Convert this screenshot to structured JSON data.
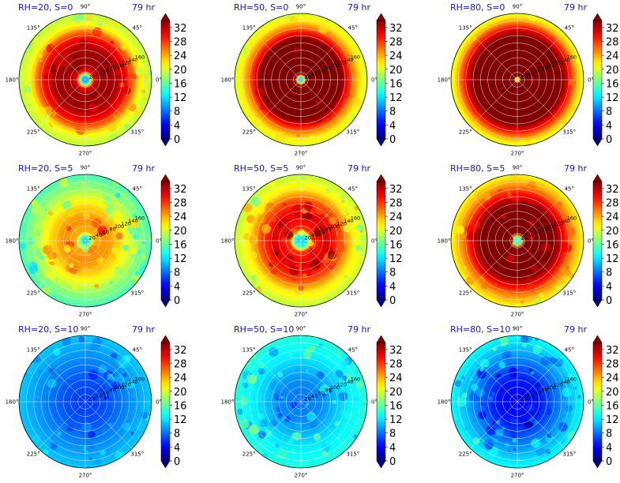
{
  "chart_data": {
    "type": "heatmap",
    "projection": "polar",
    "layout": "3x3 grid of polar panels, each with its own vertical colorbar on the right",
    "angle_ticks": [
      "0°",
      "45°",
      "90°",
      "135°",
      "180°",
      "225°",
      "270°",
      "315°"
    ],
    "radial_ticks": [
      "20",
      "40",
      "60",
      "80",
      "100",
      "120",
      "140",
      "160"
    ],
    "radial_range": [
      0,
      180
    ],
    "grid": true,
    "colormap": "jet",
    "colorbar": {
      "ticks": [
        "0",
        "4",
        "8",
        "12",
        "16",
        "20",
        "24",
        "28",
        "32"
      ],
      "range": [
        0,
        34
      ],
      "extend": "both"
    },
    "label_color": "#1515c0",
    "panels": [
      {
        "label": "RH=20, S=0",
        "time": "79 hr",
        "rings": [
          {
            "r": 0,
            "value": 6
          },
          {
            "r": 10,
            "value": 12
          },
          {
            "r": 22,
            "value": 30
          },
          {
            "r": 40,
            "value": 33
          },
          {
            "r": 80,
            "value": 33
          },
          {
            "r": 110,
            "value": 30
          },
          {
            "r": 130,
            "value": 26
          },
          {
            "r": 150,
            "value": 21
          },
          {
            "r": 180,
            "value": 19
          }
        ],
        "texture": 0.35
      },
      {
        "label": "RH=50, S=0",
        "time": "79 hr",
        "rings": [
          {
            "r": 0,
            "value": 8
          },
          {
            "r": 8,
            "value": 14
          },
          {
            "r": 16,
            "value": 34
          },
          {
            "r": 110,
            "value": 34
          },
          {
            "r": 125,
            "value": 30
          },
          {
            "r": 145,
            "value": 25
          },
          {
            "r": 160,
            "value": 22
          },
          {
            "r": 180,
            "value": 20
          }
        ],
        "texture": 0.15
      },
      {
        "label": "RH=80, S=0",
        "time": "79 hr",
        "rings": [
          {
            "r": 0,
            "value": 16
          },
          {
            "r": 5,
            "value": 22
          },
          {
            "r": 10,
            "value": 34
          },
          {
            "r": 120,
            "value": 34
          },
          {
            "r": 135,
            "value": 31
          },
          {
            "r": 150,
            "value": 27
          },
          {
            "r": 165,
            "value": 23
          },
          {
            "r": 180,
            "value": 20
          }
        ],
        "texture": 0.1
      },
      {
        "label": "RH=20, S=5",
        "time": "79 hr",
        "rings": [
          {
            "r": 0,
            "value": 8
          },
          {
            "r": 10,
            "value": 14
          },
          {
            "r": 25,
            "value": 24
          },
          {
            "r": 60,
            "value": 25
          },
          {
            "r": 100,
            "value": 22
          },
          {
            "r": 140,
            "value": 18
          },
          {
            "r": 180,
            "value": 15
          }
        ],
        "texture": 0.5
      },
      {
        "label": "RH=50, S=5",
        "time": "79 hr",
        "rings": [
          {
            "r": 0,
            "value": 10
          },
          {
            "r": 18,
            "value": 14
          },
          {
            "r": 30,
            "value": 28
          },
          {
            "r": 70,
            "value": 31
          },
          {
            "r": 110,
            "value": 27
          },
          {
            "r": 140,
            "value": 22
          },
          {
            "r": 180,
            "value": 19
          }
        ],
        "texture": 0.45
      },
      {
        "label": "RH=80, S=5",
        "time": "79 hr",
        "rings": [
          {
            "r": 0,
            "value": 12
          },
          {
            "r": 10,
            "value": 16
          },
          {
            "r": 20,
            "value": 34
          },
          {
            "r": 100,
            "value": 34
          },
          {
            "r": 125,
            "value": 30
          },
          {
            "r": 150,
            "value": 25
          },
          {
            "r": 180,
            "value": 21
          }
        ],
        "texture": 0.3
      },
      {
        "label": "RH=20, S=10",
        "time": "79 hr",
        "rings": [
          {
            "r": 0,
            "value": 6
          },
          {
            "r": 60,
            "value": 7
          },
          {
            "r": 120,
            "value": 9
          },
          {
            "r": 180,
            "value": 11
          }
        ],
        "texture": 0.3
      },
      {
        "label": "RH=50, S=10",
        "time": "79 hr",
        "rings": [
          {
            "r": 0,
            "value": 8
          },
          {
            "r": 60,
            "value": 9
          },
          {
            "r": 120,
            "value": 12
          },
          {
            "r": 180,
            "value": 14
          }
        ],
        "texture": 0.45
      },
      {
        "label": "RH=80, S=10",
        "time": "79 hr",
        "rings": [
          {
            "r": 0,
            "value": 4
          },
          {
            "r": 60,
            "value": 5
          },
          {
            "r": 120,
            "value": 9
          },
          {
            "r": 180,
            "value": 13
          }
        ],
        "texture": 0.45
      }
    ]
  }
}
